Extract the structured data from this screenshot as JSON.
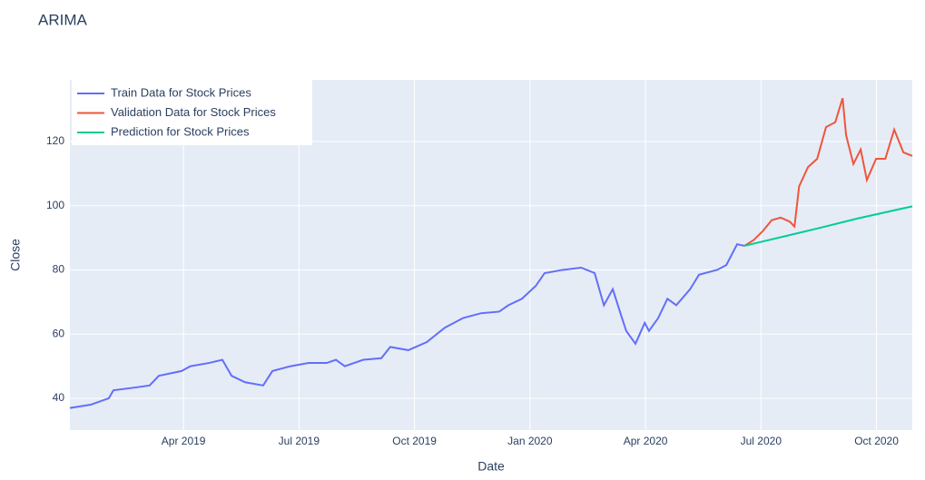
{
  "chart_data": {
    "type": "line",
    "title": "ARIMA",
    "x_label": "Date",
    "y_label": "Close",
    "xlim": [
      0.05,
      21.93
    ],
    "ylim": [
      30.1,
      139.2
    ],
    "xticks": [
      {
        "value": 3,
        "label": "Apr 2019"
      },
      {
        "value": 6,
        "label": "Jul 2019"
      },
      {
        "value": 9,
        "label": "Oct 2019"
      },
      {
        "value": 12,
        "label": "Jan 2020"
      },
      {
        "value": 15,
        "label": "Apr 2020"
      },
      {
        "value": 18,
        "label": "Jul 2020"
      },
      {
        "value": 21,
        "label": "Oct 2020"
      }
    ],
    "yticks": [
      40,
      60,
      80,
      100,
      120
    ],
    "grid": true,
    "legend": "top-left",
    "series": [
      {
        "name": "Train Data for Stock Prices",
        "color": "#636efa",
        "x": [
          0.05,
          0.59,
          1.06,
          1.18,
          1.77,
          2.12,
          2.36,
          2.95,
          3.18,
          3.66,
          4.01,
          4.25,
          4.6,
          5.07,
          5.31,
          5.78,
          6.25,
          6.72,
          6.96,
          7.19,
          7.67,
          8.14,
          8.37,
          8.84,
          9.32,
          9.79,
          10.26,
          10.73,
          11.2,
          11.44,
          11.79,
          12.15,
          12.38,
          12.85,
          13.33,
          13.68,
          13.92,
          14.15,
          14.39,
          14.5,
          14.74,
          14.98,
          15.09,
          15.33,
          15.57,
          15.8,
          16.16,
          16.39,
          16.86,
          17.1,
          17.38,
          17.57
        ],
        "values": [
          37,
          38,
          40,
          42.5,
          43.4,
          44,
          47,
          48.5,
          50,
          51,
          52,
          47,
          45,
          44,
          48.5,
          50,
          51,
          51,
          52,
          50,
          52,
          52.5,
          56,
          55,
          57.5,
          62,
          65,
          66.5,
          67,
          69,
          71,
          75,
          79,
          80,
          80.7,
          79,
          69,
          74,
          65,
          61,
          57,
          63.5,
          61,
          65,
          71,
          69,
          74,
          78.5,
          80,
          81.5,
          88,
          87.5
        ]
      },
      {
        "name": "Validation Data for Stock Prices",
        "color": "#ef553b",
        "x": [
          17.57,
          17.81,
          18.04,
          18.28,
          18.51,
          18.75,
          18.87,
          18.99,
          19.22,
          19.46,
          19.69,
          19.93,
          20.12,
          20.21,
          20.4,
          20.59,
          20.75,
          20.99,
          21.23,
          21.46,
          21.7,
          21.93
        ],
        "values": [
          87.5,
          89.3,
          92,
          95.5,
          96.3,
          95,
          93.5,
          106,
          112,
          114.6,
          124.5,
          126,
          133.5,
          122,
          113,
          117.5,
          108,
          114.6,
          114.6,
          123.7,
          116.6,
          115.5
        ]
      },
      {
        "name": "Prediction for Stock Prices",
        "color": "#00cc96",
        "x": [
          17.57,
          19.5,
          20.5,
          21.93
        ],
        "values": [
          87.5,
          93,
          96,
          99.8
        ]
      }
    ]
  }
}
